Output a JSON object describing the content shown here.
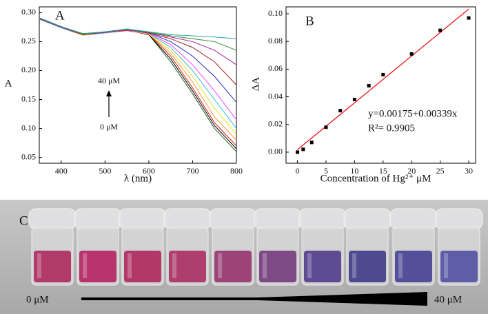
{
  "chart_data": [
    {
      "type": "line",
      "panel_label": "A",
      "x_label": "λ (nm)",
      "y_label": "A",
      "annotations": [
        "40 μM",
        "0 μM"
      ],
      "x": [
        350,
        400,
        450,
        500,
        550,
        600,
        650,
        700,
        750,
        800
      ],
      "xlim": [
        350,
        800
      ],
      "xticks": [
        400,
        500,
        600,
        700,
        800
      ],
      "ylim": [
        0.04,
        0.31
      ],
      "yticks": [
        {
          "value": 0.05,
          "label": "0.05"
        },
        {
          "value": 0.1,
          "label": "0.10"
        },
        {
          "value": 0.15,
          "label": "0.15"
        },
        {
          "value": 0.2,
          "label": "0.20"
        },
        {
          "value": 0.25,
          "label": "0.25"
        },
        {
          "value": 0.3,
          "label": "0.30"
        }
      ],
      "series": [
        {
          "color": "#1a5c1a",
          "values": [
            0.29,
            0.275,
            0.262,
            0.265,
            0.27,
            0.262,
            0.215,
            0.16,
            0.1,
            0.06
          ]
        },
        {
          "color": "#000000",
          "values": [
            0.291,
            0.276,
            0.262,
            0.266,
            0.27,
            0.262,
            0.22,
            0.165,
            0.105,
            0.065
          ]
        },
        {
          "color": "#d02020",
          "values": [
            0.289,
            0.274,
            0.261,
            0.265,
            0.269,
            0.263,
            0.225,
            0.17,
            0.11,
            0.07
          ]
        },
        {
          "color": "#ff9a30",
          "values": [
            0.29,
            0.275,
            0.262,
            0.265,
            0.27,
            0.263,
            0.23,
            0.18,
            0.12,
            0.08
          ]
        },
        {
          "color": "#e8e020",
          "values": [
            0.29,
            0.275,
            0.261,
            0.266,
            0.27,
            0.263,
            0.235,
            0.19,
            0.135,
            0.09
          ]
        },
        {
          "color": "#30c0e0",
          "values": [
            0.289,
            0.274,
            0.262,
            0.265,
            0.271,
            0.264,
            0.24,
            0.2,
            0.15,
            0.1
          ]
        },
        {
          "color": "#ff40ff",
          "values": [
            0.29,
            0.275,
            0.262,
            0.266,
            0.27,
            0.264,
            0.245,
            0.21,
            0.165,
            0.115
          ]
        },
        {
          "color": "#2030c0",
          "values": [
            0.291,
            0.276,
            0.263,
            0.266,
            0.271,
            0.265,
            0.25,
            0.225,
            0.19,
            0.145
          ]
        },
        {
          "color": "#a02020",
          "values": [
            0.29,
            0.275,
            0.262,
            0.266,
            0.271,
            0.265,
            0.255,
            0.24,
            0.215,
            0.175
          ]
        },
        {
          "color": "#a020a0",
          "values": [
            0.289,
            0.275,
            0.263,
            0.266,
            0.27,
            0.266,
            0.258,
            0.25,
            0.235,
            0.21
          ]
        },
        {
          "color": "#2a8a2a",
          "values": [
            0.29,
            0.276,
            0.263,
            0.267,
            0.271,
            0.266,
            0.26,
            0.255,
            0.25,
            0.235
          ]
        },
        {
          "color": "#30a0a0",
          "values": [
            0.291,
            0.276,
            0.264,
            0.267,
            0.272,
            0.267,
            0.262,
            0.26,
            0.258,
            0.255
          ]
        }
      ]
    },
    {
      "type": "scatter",
      "panel_label": "B",
      "x_label": "Concentration of Hg²⁺ μM",
      "y_label": "ΔA",
      "annotations": [
        "y=0.00175+0.00339x",
        "R²= 0.9905"
      ],
      "xlim": [
        -2,
        31.2
      ],
      "xticks": [
        0,
        5,
        10,
        15,
        20,
        25,
        30
      ],
      "ylim": [
        -0.008,
        0.105
      ],
      "yticks": [
        {
          "value": 0,
          "label": "0.00"
        },
        {
          "value": 0.02,
          "label": "0.02"
        },
        {
          "value": 0.04,
          "label": "0.04"
        },
        {
          "value": 0.06,
          "label": "0.06"
        },
        {
          "value": 0.08,
          "label": "0.08"
        },
        {
          "value": 0.1,
          "label": "0.10"
        }
      ],
      "points": {
        "color": "#000000",
        "x": [
          0,
          1,
          2.5,
          5,
          7.5,
          10,
          12.5,
          15,
          20,
          25,
          30
        ],
        "values": [
          0,
          0.002,
          0.007,
          0.018,
          0.03,
          0.038,
          0.048,
          0.056,
          0.071,
          0.088,
          0.097
        ]
      },
      "fit": {
        "color": "#ee1111",
        "x": [
          0,
          30
        ],
        "values": [
          0.00175,
          0.10345
        ]
      }
    }
  ],
  "photo": {
    "label": "C",
    "start": "0 μM",
    "end": "40 μM"
  }
}
